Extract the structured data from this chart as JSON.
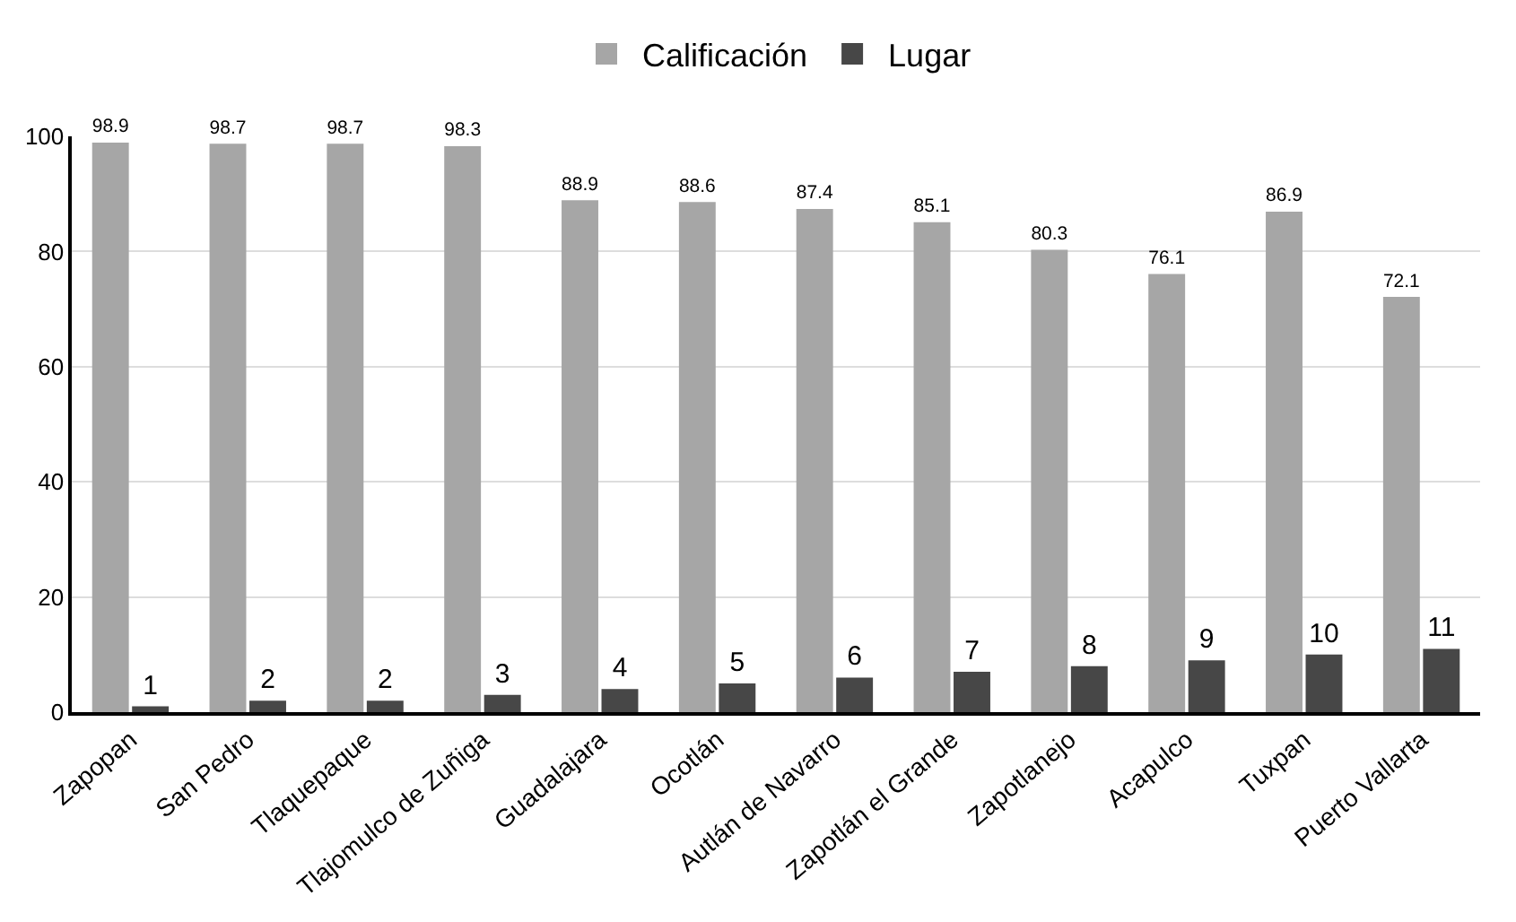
{
  "chart_data": {
    "type": "bar",
    "categories": [
      "Zapopan",
      "San Pedro",
      "Tlaquepaque",
      "Tlajomulco de Zuñiga",
      "Guadalajara",
      "Ocotlán",
      "Autlán de Navarro",
      "Zapotlán el Grande",
      "Zapotlanejo",
      "Acapulco",
      "Tuxpan",
      "Puerto Vallarta"
    ],
    "series": [
      {
        "name": "Calificación",
        "color": "#a6a6a6",
        "values": [
          98.9,
          98.7,
          98.7,
          98.3,
          88.9,
          88.6,
          87.4,
          85.1,
          80.3,
          76.1,
          86.9,
          72.1
        ]
      },
      {
        "name": "Lugar",
        "color": "#474747",
        "values": [
          1,
          2,
          2,
          3,
          4,
          5,
          6,
          7,
          8,
          9,
          10,
          11
        ]
      }
    ],
    "ylim": [
      0,
      100
    ],
    "yticks": [
      0,
      20,
      40,
      60,
      80,
      100
    ],
    "grid": "y",
    "legend": "top",
    "data_labels": true
  }
}
